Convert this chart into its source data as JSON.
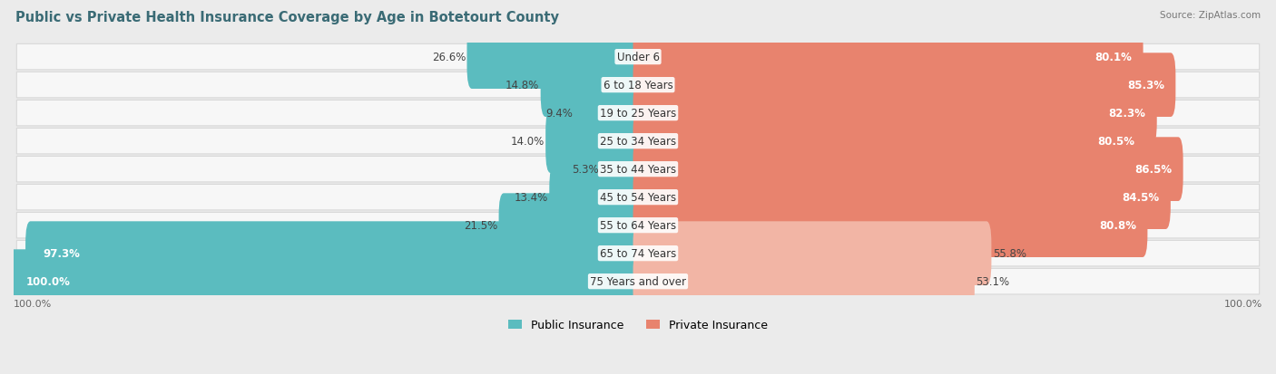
{
  "title": "Public vs Private Health Insurance Coverage by Age in Botetourt County",
  "source": "Source: ZipAtlas.com",
  "categories": [
    "Under 6",
    "6 to 18 Years",
    "19 to 25 Years",
    "25 to 34 Years",
    "35 to 44 Years",
    "45 to 54 Years",
    "55 to 64 Years",
    "65 to 74 Years",
    "75 Years and over"
  ],
  "public_values": [
    26.6,
    14.8,
    9.4,
    14.0,
    5.3,
    13.4,
    21.5,
    97.3,
    100.0
  ],
  "private_values": [
    80.1,
    85.3,
    82.3,
    80.5,
    86.5,
    84.5,
    80.8,
    55.8,
    53.1
  ],
  "public_color": "#5bbcbf",
  "private_color_strong": "#e8836e",
  "private_color_light": "#f2b5a5",
  "bg_color": "#ebebeb",
  "row_bg": "#f7f7f7",
  "row_edge": "#d8d8d8",
  "title_color": "#3a6b75",
  "value_label_dark": "#444444",
  "label_fontsize": 8.5,
  "title_fontsize": 10.5,
  "legend_fontsize": 9,
  "bar_height": 0.68,
  "private_light_threshold": 60
}
